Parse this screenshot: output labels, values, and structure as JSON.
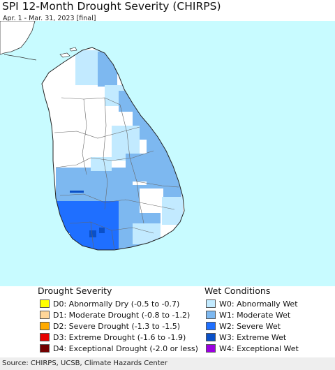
{
  "title": "SPI 12-Month Drought Severity (CHIRPS)",
  "subtitle": "Apr. 1 - Mar. 31, 2023 [final]",
  "colors": {
    "ocean": "#c8fbff",
    "land": "#ffffff",
    "borders": "#555555",
    "W0": "#c2eaff",
    "W1": "#7db8f0",
    "W2": "#1f6fff",
    "W3": "#0a50c8",
    "W4": "#9b00e0"
  },
  "legend": {
    "drought_heading": "Drought Severity",
    "wet_heading": "Wet Conditions",
    "drought_items": [
      {
        "label": "D0: Abnormally Dry (-0.5 to -0.7)",
        "color": "#ffff00"
      },
      {
        "label": "D1: Moderate Drought (-0.8 to -1.2)",
        "color": "#ffd699"
      },
      {
        "label": "D2: Severe Drought (-1.3 to -1.5)",
        "color": "#ffaa00"
      },
      {
        "label": "D3: Extreme Drought (-1.6 to -1.9)",
        "color": "#e60000"
      },
      {
        "label": "D4: Exceptional Drought (-2.0 or less)",
        "color": "#730000"
      }
    ],
    "wet_items": [
      {
        "label": "W0: Abnormally Wet",
        "color": "#c2eaff"
      },
      {
        "label": "W1: Moderate Wet",
        "color": "#7db8f0"
      },
      {
        "label": "W2: Severe Wet",
        "color": "#1f6fff"
      },
      {
        "label": "W3: Extreme Wet",
        "color": "#0a50c8"
      },
      {
        "label": "W4: Exceptional Wet",
        "color": "#9b00e0"
      }
    ]
  },
  "source": "Source: CHIRPS, UCSB, Climate Hazards Center"
}
